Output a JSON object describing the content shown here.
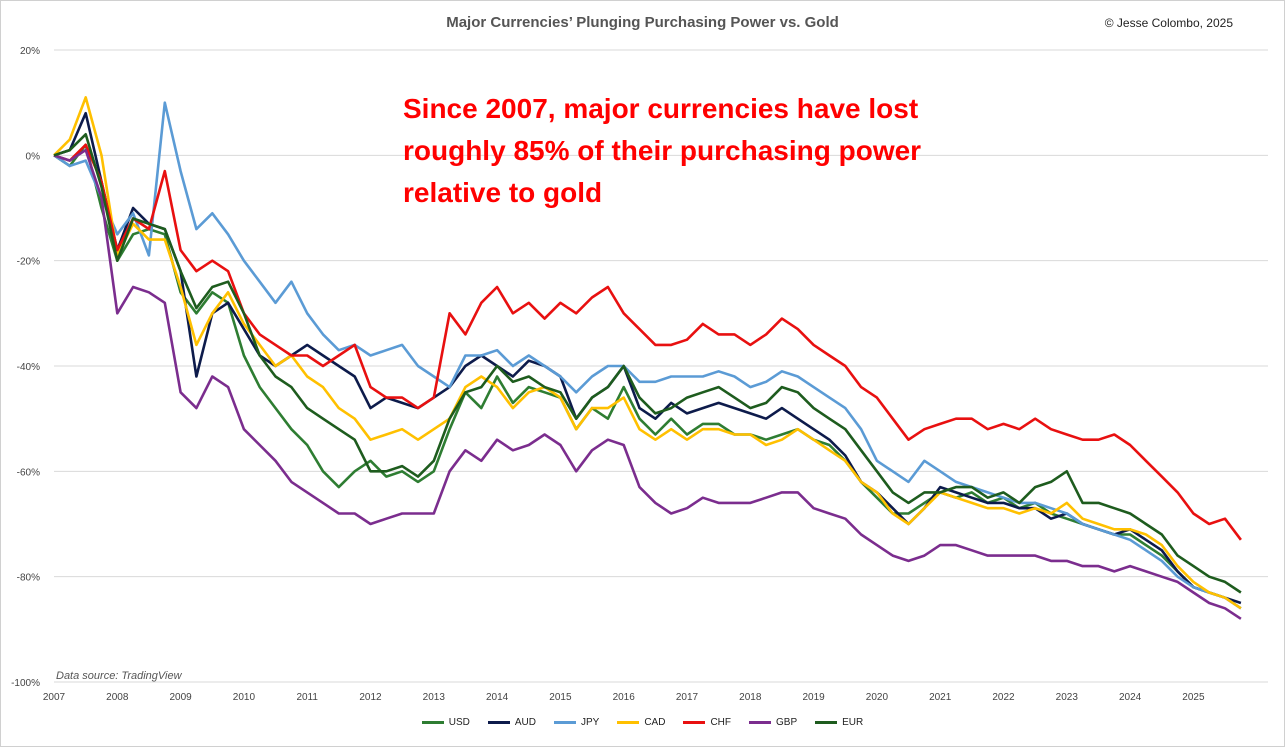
{
  "title": "Major Currencies’ Plunging Purchasing Power vs. Gold",
  "copyright": "© Jesse Colombo, 2025",
  "annotation": "Since 2007, major currencies have lost roughly 85% of their purchasing power relative to gold",
  "source": "Data source: TradingView",
  "chart_data": {
    "type": "line",
    "title": "Major Currencies’ Plunging Purchasing Power vs. Gold",
    "xlabel": "",
    "ylabel": "",
    "x_ticks": [
      "2007",
      "2008",
      "2009",
      "2010",
      "2011",
      "2012",
      "2013",
      "2014",
      "2015",
      "2016",
      "2017",
      "2018",
      "2019",
      "2020",
      "2021",
      "2022",
      "2023",
      "2024",
      "2025"
    ],
    "y_ticks": [
      "20%",
      "0%",
      "-20%",
      "-40%",
      "-60%",
      "-80%",
      "-100%"
    ],
    "ylim": [
      -100,
      20
    ],
    "xlim": [
      2007,
      2025.75
    ],
    "grid": true,
    "legend_position": "bottom",
    "annotation": "Since 2007, major currencies have lost roughly 85% of their purchasing power relative to gold",
    "series": [
      {
        "name": "USD",
        "color": "#2e7d32",
        "x": [
          2007,
          2007.25,
          2007.5,
          2007.75,
          2008,
          2008.25,
          2008.5,
          2008.75,
          2009,
          2009.25,
          2009.5,
          2009.75,
          2010,
          2010.25,
          2010.5,
          2010.75,
          2011,
          2011.25,
          2011.5,
          2011.75,
          2012,
          2012.25,
          2012.5,
          2012.75,
          2013,
          2013.25,
          2013.5,
          2013.75,
          2014,
          2014.25,
          2014.5,
          2014.75,
          2015,
          2015.25,
          2015.5,
          2015.75,
          2016,
          2016.25,
          2016.5,
          2016.75,
          2017,
          2017.25,
          2017.5,
          2017.75,
          2018,
          2018.25,
          2018.5,
          2018.75,
          2019,
          2019.25,
          2019.5,
          2019.75,
          2020,
          2020.25,
          2020.5,
          2020.75,
          2021,
          2021.25,
          2021.5,
          2021.75,
          2022,
          2022.25,
          2022.5,
          2022.75,
          2023,
          2023.25,
          2023.5,
          2023.75,
          2024,
          2024.25,
          2024.5,
          2024.75,
          2025,
          2025.25,
          2025.5,
          2025.75
        ],
        "values": [
          0,
          -2,
          2,
          -10,
          -20,
          -15,
          -14,
          -15,
          -26,
          -30,
          -26,
          -28,
          -38,
          -44,
          -48,
          -52,
          -55,
          -60,
          -63,
          -60,
          -58,
          -61,
          -60,
          -62,
          -60,
          -52,
          -45,
          -48,
          -42,
          -47,
          -44,
          -45,
          -46,
          -52,
          -48,
          -50,
          -44,
          -50,
          -53,
          -50,
          -53,
          -51,
          -51,
          -53,
          -53,
          -54,
          -53,
          -52,
          -54,
          -55,
          -58,
          -62,
          -65,
          -68,
          -68,
          -66,
          -64,
          -65,
          -64,
          -66,
          -65,
          -67,
          -66,
          -68,
          -69,
          -70,
          -71,
          -72,
          -72,
          -74,
          -76,
          -79,
          -82,
          -83,
          -84,
          -86
        ]
      },
      {
        "name": "AUD",
        "color": "#0d1b4b",
        "x": [
          2007,
          2007.25,
          2007.5,
          2007.75,
          2008,
          2008.25,
          2008.5,
          2008.75,
          2009,
          2009.25,
          2009.5,
          2009.75,
          2010,
          2010.25,
          2010.5,
          2010.75,
          2011,
          2011.25,
          2011.5,
          2011.75,
          2012,
          2012.25,
          2012.5,
          2012.75,
          2013,
          2013.25,
          2013.5,
          2013.75,
          2014,
          2014.25,
          2014.5,
          2014.75,
          2015,
          2015.25,
          2015.5,
          2015.75,
          2016,
          2016.25,
          2016.5,
          2016.75,
          2017,
          2017.25,
          2017.5,
          2017.75,
          2018,
          2018.25,
          2018.5,
          2018.75,
          2019,
          2019.25,
          2019.5,
          2019.75,
          2020,
          2020.25,
          2020.5,
          2020.75,
          2021,
          2021.25,
          2021.5,
          2021.75,
          2022,
          2022.25,
          2022.5,
          2022.75,
          2023,
          2023.25,
          2023.5,
          2023.75,
          2024,
          2024.25,
          2024.5,
          2024.75,
          2025,
          2025.25,
          2025.5,
          2025.75
        ],
        "values": [
          0,
          1,
          8,
          -5,
          -18,
          -10,
          -13,
          -14,
          -22,
          -42,
          -30,
          -28,
          -33,
          -38,
          -40,
          -38,
          -36,
          -38,
          -40,
          -42,
          -48,
          -46,
          -47,
          -48,
          -46,
          -44,
          -40,
          -38,
          -40,
          -42,
          -39,
          -40,
          -42,
          -50,
          -46,
          -44,
          -40,
          -48,
          -50,
          -47,
          -49,
          -48,
          -47,
          -48,
          -49,
          -50,
          -48,
          -50,
          -52,
          -54,
          -57,
          -62,
          -64,
          -67,
          -70,
          -67,
          -63,
          -64,
          -65,
          -66,
          -66,
          -67,
          -67,
          -69,
          -68,
          -70,
          -71,
          -72,
          -71,
          -73,
          -75,
          -79,
          -82,
          -83,
          -84,
          -85
        ]
      },
      {
        "name": "JPY",
        "color": "#5b9bd5",
        "x": [
          2007,
          2007.25,
          2007.5,
          2007.75,
          2008,
          2008.25,
          2008.5,
          2008.75,
          2009,
          2009.25,
          2009.5,
          2009.75,
          2010,
          2010.25,
          2010.5,
          2010.75,
          2011,
          2011.25,
          2011.5,
          2011.75,
          2012,
          2012.25,
          2012.5,
          2012.75,
          2013,
          2013.25,
          2013.5,
          2013.75,
          2014,
          2014.25,
          2014.5,
          2014.75,
          2015,
          2015.25,
          2015.5,
          2015.75,
          2016,
          2016.25,
          2016.5,
          2016.75,
          2017,
          2017.25,
          2017.5,
          2017.75,
          2018,
          2018.25,
          2018.5,
          2018.75,
          2019,
          2019.25,
          2019.5,
          2019.75,
          2020,
          2020.25,
          2020.5,
          2020.75,
          2021,
          2021.25,
          2021.5,
          2021.75,
          2022,
          2022.25,
          2022.5,
          2022.75,
          2023,
          2023.25,
          2023.5,
          2023.75,
          2024,
          2024.25,
          2024.5,
          2024.75,
          2025,
          2025.25,
          2025.5,
          2025.75
        ],
        "values": [
          0,
          -2,
          -1,
          -8,
          -15,
          -11,
          -19,
          10,
          -3,
          -14,
          -11,
          -15,
          -20,
          -24,
          -28,
          -24,
          -30,
          -34,
          -37,
          -36,
          -38,
          -37,
          -36,
          -40,
          -42,
          -44,
          -38,
          -38,
          -37,
          -40,
          -38,
          -40,
          -42,
          -45,
          -42,
          -40,
          -40,
          -43,
          -43,
          -42,
          -42,
          -42,
          -41,
          -42,
          -44,
          -43,
          -41,
          -42,
          -44,
          -46,
          -48,
          -52,
          -58,
          -60,
          -62,
          -58,
          -60,
          -62,
          -63,
          -64,
          -65,
          -66,
          -66,
          -67,
          -68,
          -70,
          -71,
          -72,
          -73,
          -75,
          -77,
          -80,
          -82,
          -83,
          -84,
          -86
        ]
      },
      {
        "name": "CAD",
        "color": "#ffc000",
        "x": [
          2007,
          2007.25,
          2007.5,
          2007.75,
          2008,
          2008.25,
          2008.5,
          2008.75,
          2009,
          2009.25,
          2009.5,
          2009.75,
          2010,
          2010.25,
          2010.5,
          2010.75,
          2011,
          2011.25,
          2011.5,
          2011.75,
          2012,
          2012.25,
          2012.5,
          2012.75,
          2013,
          2013.25,
          2013.5,
          2013.75,
          2014,
          2014.25,
          2014.5,
          2014.75,
          2015,
          2015.25,
          2015.5,
          2015.75,
          2016,
          2016.25,
          2016.5,
          2016.75,
          2017,
          2017.25,
          2017.5,
          2017.75,
          2018,
          2018.25,
          2018.5,
          2018.75,
          2019,
          2019.25,
          2019.5,
          2019.75,
          2020,
          2020.25,
          2020.5,
          2020.75,
          2021,
          2021.25,
          2021.5,
          2021.75,
          2022,
          2022.25,
          2022.5,
          2022.75,
          2023,
          2023.25,
          2023.5,
          2023.75,
          2024,
          2024.25,
          2024.5,
          2024.75,
          2025,
          2025.25,
          2025.5,
          2025.75
        ],
        "values": [
          0,
          3,
          11,
          0,
          -19,
          -13,
          -16,
          -16,
          -25,
          -36,
          -30,
          -26,
          -32,
          -36,
          -40,
          -38,
          -42,
          -44,
          -48,
          -50,
          -54,
          -53,
          -52,
          -54,
          -52,
          -50,
          -44,
          -42,
          -44,
          -48,
          -45,
          -44,
          -46,
          -52,
          -48,
          -48,
          -46,
          -52,
          -54,
          -52,
          -54,
          -52,
          -52,
          -53,
          -53,
          -55,
          -54,
          -52,
          -54,
          -56,
          -58,
          -62,
          -64,
          -68,
          -70,
          -67,
          -64,
          -65,
          -66,
          -67,
          -67,
          -68,
          -67,
          -68,
          -66,
          -69,
          -70,
          -71,
          -71,
          -72,
          -74,
          -78,
          -81,
          -83,
          -84,
          -86
        ]
      },
      {
        "name": "CHF",
        "color": "#e81010",
        "x": [
          2007,
          2007.25,
          2007.5,
          2007.75,
          2008,
          2008.25,
          2008.5,
          2008.75,
          2009,
          2009.25,
          2009.5,
          2009.75,
          2010,
          2010.25,
          2010.5,
          2010.75,
          2011,
          2011.25,
          2011.5,
          2011.75,
          2012,
          2012.25,
          2012.5,
          2012.75,
          2013,
          2013.25,
          2013.5,
          2013.75,
          2014,
          2014.25,
          2014.5,
          2014.75,
          2015,
          2015.25,
          2015.5,
          2015.75,
          2016,
          2016.25,
          2016.5,
          2016.75,
          2017,
          2017.25,
          2017.5,
          2017.75,
          2018,
          2018.25,
          2018.5,
          2018.75,
          2019,
          2019.25,
          2019.5,
          2019.75,
          2020,
          2020.25,
          2020.5,
          2020.75,
          2021,
          2021.25,
          2021.5,
          2021.75,
          2022,
          2022.25,
          2022.5,
          2022.75,
          2023,
          2023.25,
          2023.5,
          2023.75,
          2024,
          2024.25,
          2024.5,
          2024.75,
          2025,
          2025.25,
          2025.5,
          2025.75
        ],
        "values": [
          0,
          -1,
          2,
          -5,
          -18,
          -12,
          -14,
          -3,
          -18,
          -22,
          -20,
          -22,
          -30,
          -34,
          -36,
          -38,
          -38,
          -40,
          -38,
          -36,
          -44,
          -46,
          -46,
          -48,
          -46,
          -30,
          -34,
          -28,
          -25,
          -30,
          -28,
          -31,
          -28,
          -30,
          -27,
          -25,
          -30,
          -33,
          -36,
          -36,
          -35,
          -32,
          -34,
          -34,
          -36,
          -34,
          -31,
          -33,
          -36,
          -38,
          -40,
          -44,
          -46,
          -50,
          -54,
          -52,
          -51,
          -50,
          -50,
          -52,
          -51,
          -52,
          -50,
          -52,
          -53,
          -54,
          -54,
          -53,
          -55,
          -58,
          -61,
          -64,
          -68,
          -70,
          -69,
          -73
        ]
      },
      {
        "name": "GBP",
        "color": "#7b2d8e",
        "x": [
          2007,
          2007.25,
          2007.5,
          2007.75,
          2008,
          2008.25,
          2008.5,
          2008.75,
          2009,
          2009.25,
          2009.5,
          2009.75,
          2010,
          2010.25,
          2010.5,
          2010.75,
          2011,
          2011.25,
          2011.5,
          2011.75,
          2012,
          2012.25,
          2012.5,
          2012.75,
          2013,
          2013.25,
          2013.5,
          2013.75,
          2014,
          2014.25,
          2014.5,
          2014.75,
          2015,
          2015.25,
          2015.5,
          2015.75,
          2016,
          2016.25,
          2016.5,
          2016.75,
          2017,
          2017.25,
          2017.5,
          2017.75,
          2018,
          2018.25,
          2018.5,
          2018.75,
          2019,
          2019.25,
          2019.5,
          2019.75,
          2020,
          2020.25,
          2020.5,
          2020.75,
          2021,
          2021.25,
          2021.5,
          2021.75,
          2022,
          2022.25,
          2022.5,
          2022.75,
          2023,
          2023.25,
          2023.5,
          2023.75,
          2024,
          2024.25,
          2024.5,
          2024.75,
          2025,
          2025.25,
          2025.5,
          2025.75
        ],
        "values": [
          0,
          -1,
          1,
          -8,
          -30,
          -25,
          -26,
          -28,
          -45,
          -48,
          -42,
          -44,
          -52,
          -55,
          -58,
          -62,
          -64,
          -66,
          -68,
          -68,
          -70,
          -69,
          -68,
          -68,
          -68,
          -60,
          -56,
          -58,
          -54,
          -56,
          -55,
          -53,
          -55,
          -60,
          -56,
          -54,
          -55,
          -63,
          -66,
          -68,
          -67,
          -65,
          -66,
          -66,
          -66,
          -65,
          -64,
          -64,
          -67,
          -68,
          -69,
          -72,
          -74,
          -76,
          -77,
          -76,
          -74,
          -74,
          -75,
          -76,
          -76,
          -76,
          -76,
          -77,
          -77,
          -78,
          -78,
          -79,
          -78,
          -79,
          -80,
          -81,
          -83,
          -85,
          -86,
          -88
        ]
      },
      {
        "name": "EUR",
        "color": "#1e5c1e",
        "x": [
          2007,
          2007.25,
          2007.5,
          2007.75,
          2008,
          2008.25,
          2008.5,
          2008.75,
          2009,
          2009.25,
          2009.5,
          2009.75,
          2010,
          2010.25,
          2010.5,
          2010.75,
          2011,
          2011.25,
          2011.5,
          2011.75,
          2012,
          2012.25,
          2012.5,
          2012.75,
          2013,
          2013.25,
          2013.5,
          2013.75,
          2014,
          2014.25,
          2014.5,
          2014.75,
          2015,
          2015.25,
          2015.5,
          2015.75,
          2016,
          2016.25,
          2016.5,
          2016.75,
          2017,
          2017.25,
          2017.5,
          2017.75,
          2018,
          2018.25,
          2018.5,
          2018.75,
          2019,
          2019.25,
          2019.5,
          2019.75,
          2020,
          2020.25,
          2020.5,
          2020.75,
          2021,
          2021.25,
          2021.5,
          2021.75,
          2022,
          2022.25,
          2022.5,
          2022.75,
          2023,
          2023.25,
          2023.5,
          2023.75,
          2024,
          2024.25,
          2024.5,
          2024.75,
          2025,
          2025.25,
          2025.5,
          2025.75
        ],
        "values": [
          0,
          1,
          4,
          -6,
          -20,
          -12,
          -13,
          -14,
          -22,
          -29,
          -25,
          -24,
          -30,
          -38,
          -42,
          -44,
          -48,
          -50,
          -52,
          -54,
          -60,
          -60,
          -59,
          -61,
          -58,
          -50,
          -45,
          -44,
          -40,
          -43,
          -42,
          -44,
          -45,
          -50,
          -46,
          -44,
          -40,
          -46,
          -49,
          -48,
          -46,
          -45,
          -44,
          -46,
          -48,
          -47,
          -44,
          -45,
          -48,
          -50,
          -52,
          -56,
          -60,
          -64,
          -66,
          -64,
          -64,
          -63,
          -63,
          -65,
          -64,
          -66,
          -63,
          -62,
          -60,
          -66,
          -66,
          -67,
          -68,
          -70,
          -72,
          -76,
          -78,
          -80,
          -81,
          -83
        ]
      }
    ]
  }
}
